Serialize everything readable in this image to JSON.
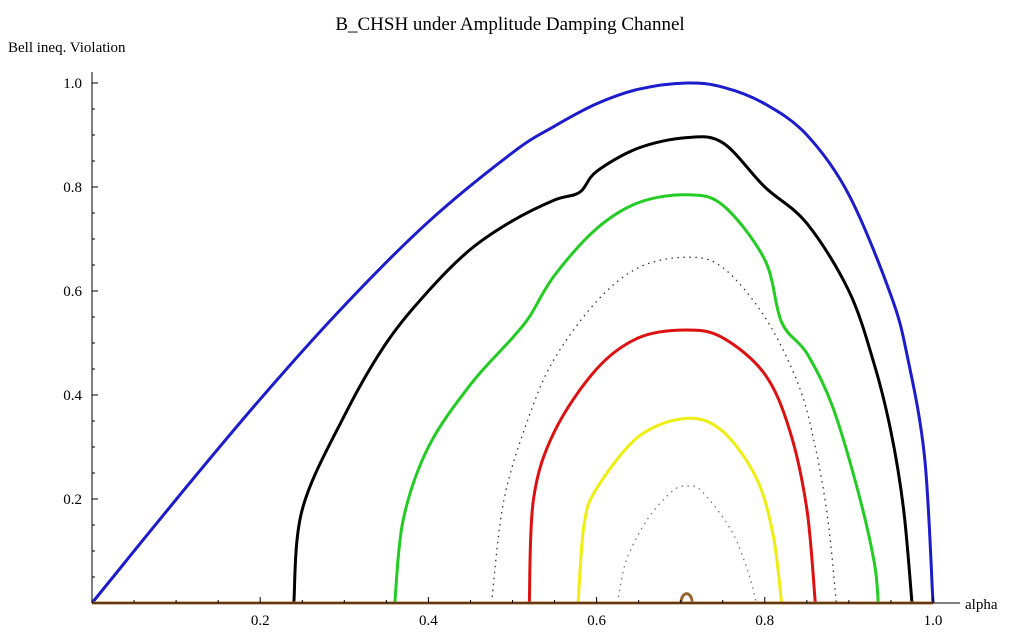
{
  "chart_data": {
    "type": "line",
    "title": "B_CHSH under Amplitude Damping Channel",
    "xlabel": "alpha",
    "ylabel": "Bell ineq. Violation",
    "xlim": [
      0,
      1.0
    ],
    "ylim": [
      0,
      1.0
    ],
    "xticks": [
      "0.2",
      "0.4",
      "0.6",
      "0.8",
      "1.0"
    ],
    "yticks": [
      "0.2",
      "0.4",
      "0.6",
      "0.8",
      "1.0"
    ],
    "xtick_values": [
      0.2,
      0.4,
      0.6,
      0.8,
      1.0
    ],
    "ytick_values": [
      0.2,
      0.4,
      0.6,
      0.8,
      1.0
    ],
    "grid": false,
    "legend": "none",
    "series": [
      {
        "color": "#1c1ccc",
        "dash": "solid",
        "x": [
          0.0,
          0.1,
          0.2,
          0.3,
          0.4,
          0.5,
          0.55,
          0.6,
          0.65,
          0.707,
          0.75,
          0.8,
          0.85,
          0.9,
          0.95,
          0.97,
          0.99,
          1.0
        ],
        "y": [
          0.0,
          0.199,
          0.392,
          0.572,
          0.733,
          0.866,
          0.917,
          0.96,
          0.988,
          1.0,
          0.992,
          0.96,
          0.9,
          0.785,
          0.592,
          0.47,
          0.28,
          0.0
        ]
      },
      {
        "color": "#000000",
        "dash": "solid",
        "x": [
          0.24,
          0.25,
          0.3,
          0.35,
          0.4,
          0.45,
          0.5,
          0.55,
          0.58,
          0.6,
          0.65,
          0.707,
          0.75,
          0.8,
          0.85,
          0.9,
          0.93,
          0.95,
          0.965,
          0.975
        ],
        "y": [
          0.0,
          0.18,
          0.36,
          0.5,
          0.6,
          0.68,
          0.735,
          0.775,
          0.79,
          0.83,
          0.875,
          0.895,
          0.885,
          0.8,
          0.73,
          0.6,
          0.46,
          0.33,
          0.18,
          0.0
        ]
      },
      {
        "color": "#22cc22",
        "dash": "solid",
        "x": [
          0.36,
          0.37,
          0.4,
          0.45,
          0.5,
          0.52,
          0.55,
          0.6,
          0.65,
          0.707,
          0.75,
          0.8,
          0.82,
          0.85,
          0.88,
          0.91,
          0.93,
          0.935
        ],
        "y": [
          0.0,
          0.16,
          0.3,
          0.42,
          0.51,
          0.55,
          0.63,
          0.72,
          0.77,
          0.785,
          0.765,
          0.66,
          0.54,
          0.48,
          0.38,
          0.22,
          0.08,
          0.0
        ]
      },
      {
        "color": "#333333",
        "dash": "dotted",
        "x": [
          0.475,
          0.49,
          0.52,
          0.55,
          0.6,
          0.65,
          0.707,
          0.75,
          0.8,
          0.84,
          0.86,
          0.875,
          0.885
        ],
        "y": [
          0.0,
          0.2,
          0.36,
          0.47,
          0.58,
          0.645,
          0.665,
          0.645,
          0.55,
          0.42,
          0.3,
          0.16,
          0.0
        ]
      },
      {
        "color": "#dd1111",
        "dash": "solid",
        "x": [
          0.52,
          0.525,
          0.55,
          0.6,
          0.65,
          0.707,
          0.75,
          0.8,
          0.83,
          0.85,
          0.86
        ],
        "y": [
          0.0,
          0.2,
          0.33,
          0.45,
          0.51,
          0.525,
          0.51,
          0.44,
          0.33,
          0.18,
          0.0
        ]
      },
      {
        "color": "#eeee11",
        "dash": "solid",
        "x": [
          0.578,
          0.585,
          0.6,
          0.65,
          0.707,
          0.75,
          0.79,
          0.81,
          0.82
        ],
        "y": [
          0.0,
          0.15,
          0.22,
          0.32,
          0.355,
          0.33,
          0.24,
          0.13,
          0.0
        ]
      },
      {
        "color": "#777777",
        "dash": "dotted",
        "x": [
          0.625,
          0.635,
          0.66,
          0.69,
          0.707,
          0.725,
          0.76,
          0.78,
          0.79
        ],
        "y": [
          0.0,
          0.08,
          0.16,
          0.215,
          0.225,
          0.215,
          0.14,
          0.06,
          0.0
        ]
      },
      {
        "color": "#996633",
        "dash": "solid",
        "x": [
          0.7,
          0.702,
          0.707,
          0.712,
          0.714
        ],
        "y": [
          0.0,
          0.012,
          0.018,
          0.012,
          0.0
        ]
      },
      {
        "color": "#b87333",
        "dash": "solid",
        "x": [
          0.0,
          1.0
        ],
        "y": [
          0.0,
          0.0
        ]
      }
    ]
  }
}
